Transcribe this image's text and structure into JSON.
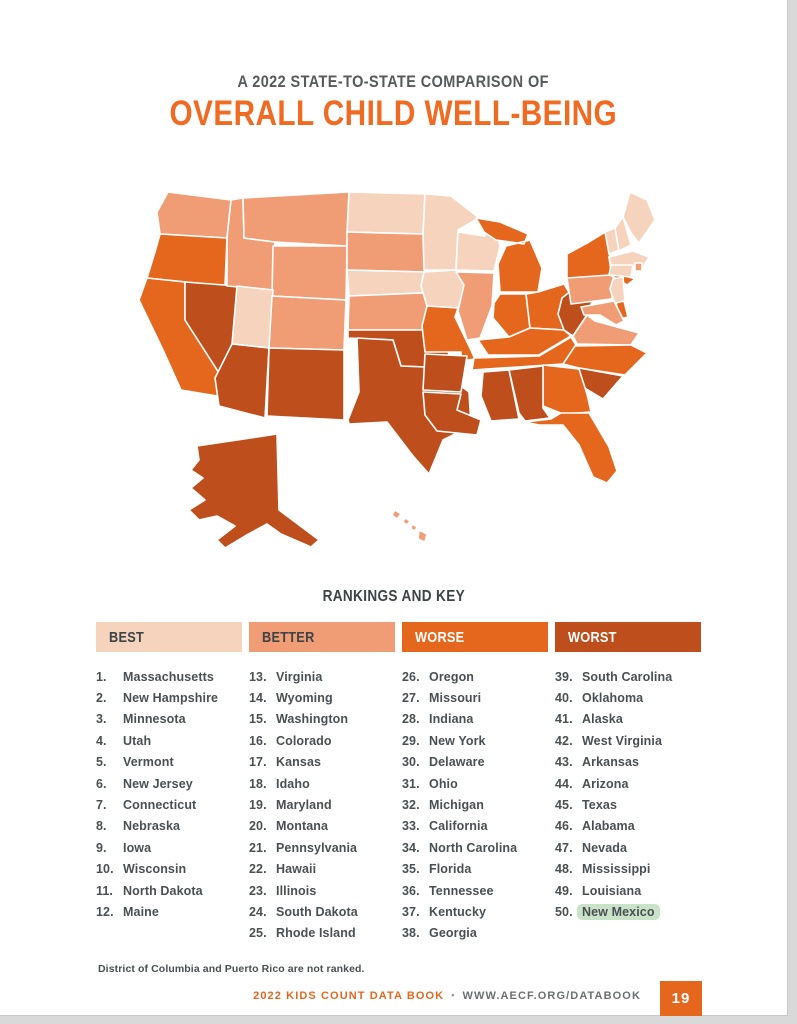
{
  "header": {
    "subtitle": "A 2022 STATE-TO-STATE COMPARISON OF",
    "title": "OVERALL CHILD WELL-BEING"
  },
  "colors": {
    "title_orange": "#f16a21",
    "subtitle_gray": "#58595b",
    "list_text": "#4a4f54",
    "highlight_green": "#c9e3c9",
    "page_box_orange": "#e5671e"
  },
  "map": {
    "category_colors": {
      "best": "#f6d3bd",
      "better": "#f09c74",
      "worse": "#e5671e",
      "worst": "#be4e1b"
    },
    "label_text_dark": "#3e4347",
    "label_text_light": "#ffffff",
    "states": {
      "WA": "better",
      "OR": "worse",
      "CA": "worse",
      "NV": "worst",
      "ID": "better",
      "MT": "better",
      "WY": "better",
      "UT": "best",
      "CO": "better",
      "AZ": "worst",
      "NM": "worst",
      "ND": "best",
      "SD": "better",
      "NE": "best",
      "KS": "better",
      "OK": "worst",
      "TX": "worst",
      "MN": "best",
      "IA": "best",
      "MO": "worse",
      "AR": "worst",
      "LA": "worst",
      "WI": "best",
      "IL": "better",
      "MI": "worse",
      "IN": "worse",
      "OH": "worse",
      "KY": "worse",
      "TN": "worse",
      "MS": "worst",
      "AL": "worst",
      "GA": "worse",
      "FL": "worse",
      "SC": "worst",
      "NC": "worse",
      "VA": "better",
      "WV": "worst",
      "PA": "better",
      "NY": "worse",
      "VT": "best",
      "NH": "best",
      "ME": "best",
      "MA": "best",
      "RI": "better",
      "CT": "best",
      "NJ": "best",
      "DE": "worse",
      "MD": "better",
      "AK": "worst",
      "HI": "better"
    }
  },
  "rankings": {
    "section_title": "RANKINGS AND KEY",
    "columns": [
      {
        "label": "BEST",
        "category": "best",
        "light_text": false,
        "items": [
          {
            "rank": "1.",
            "state": "Massachusetts"
          },
          {
            "rank": "2.",
            "state": "New Hampshire"
          },
          {
            "rank": "3.",
            "state": "Minnesota"
          },
          {
            "rank": "4.",
            "state": "Utah"
          },
          {
            "rank": "5.",
            "state": "Vermont"
          },
          {
            "rank": "6.",
            "state": "New Jersey"
          },
          {
            "rank": "7.",
            "state": "Connecticut"
          },
          {
            "rank": "8.",
            "state": "Nebraska"
          },
          {
            "rank": "9.",
            "state": "Iowa"
          },
          {
            "rank": "10.",
            "state": "Wisconsin"
          },
          {
            "rank": "11.",
            "state": "North Dakota"
          },
          {
            "rank": "12.",
            "state": "Maine"
          }
        ]
      },
      {
        "label": "BETTER",
        "category": "better",
        "light_text": false,
        "items": [
          {
            "rank": "13.",
            "state": "Virginia"
          },
          {
            "rank": "14.",
            "state": "Wyoming"
          },
          {
            "rank": "15.",
            "state": "Washington"
          },
          {
            "rank": "16.",
            "state": "Colorado"
          },
          {
            "rank": "17.",
            "state": "Kansas"
          },
          {
            "rank": "18.",
            "state": "Idaho"
          },
          {
            "rank": "19.",
            "state": "Maryland"
          },
          {
            "rank": "20.",
            "state": "Montana"
          },
          {
            "rank": "21.",
            "state": "Pennsylvania"
          },
          {
            "rank": "22.",
            "state": "Hawaii"
          },
          {
            "rank": "23.",
            "state": "Illinois"
          },
          {
            "rank": "24.",
            "state": "South Dakota"
          },
          {
            "rank": "25.",
            "state": "Rhode Island"
          }
        ]
      },
      {
        "label": "WORSE",
        "category": "worse",
        "light_text": true,
        "items": [
          {
            "rank": "26.",
            "state": "Oregon"
          },
          {
            "rank": "27.",
            "state": "Missouri"
          },
          {
            "rank": "28.",
            "state": "Indiana"
          },
          {
            "rank": "29.",
            "state": "New York"
          },
          {
            "rank": "30.",
            "state": "Delaware"
          },
          {
            "rank": "31.",
            "state": "Ohio"
          },
          {
            "rank": "32.",
            "state": "Michigan"
          },
          {
            "rank": "33.",
            "state": "California"
          },
          {
            "rank": "34.",
            "state": "North Carolina"
          },
          {
            "rank": "35.",
            "state": "Florida"
          },
          {
            "rank": "36.",
            "state": "Tennessee"
          },
          {
            "rank": "37.",
            "state": "Kentucky"
          },
          {
            "rank": "38.",
            "state": "Georgia"
          }
        ]
      },
      {
        "label": "WORST",
        "category": "worst",
        "light_text": true,
        "items": [
          {
            "rank": "39.",
            "state": "South Carolina"
          },
          {
            "rank": "40.",
            "state": "Oklahoma"
          },
          {
            "rank": "41.",
            "state": "Alaska"
          },
          {
            "rank": "42.",
            "state": "West Virginia"
          },
          {
            "rank": "43.",
            "state": "Arkansas"
          },
          {
            "rank": "44.",
            "state": "Arizona"
          },
          {
            "rank": "45.",
            "state": "Texas"
          },
          {
            "rank": "46.",
            "state": "Alabama"
          },
          {
            "rank": "47.",
            "state": "Nevada"
          },
          {
            "rank": "48.",
            "state": "Mississippi"
          },
          {
            "rank": "49.",
            "state": "Louisiana"
          },
          {
            "rank": "50.",
            "state": "New Mexico",
            "highlight": true
          }
        ]
      }
    ]
  },
  "footnote": "District of Columbia and Puerto Rico are not ranked.",
  "footer": {
    "book_title": "2022 KIDS COUNT DATA BOOK",
    "separator": "•",
    "site_url": "WWW.AECF.ORG/DATABOOK",
    "page_number": "19"
  }
}
